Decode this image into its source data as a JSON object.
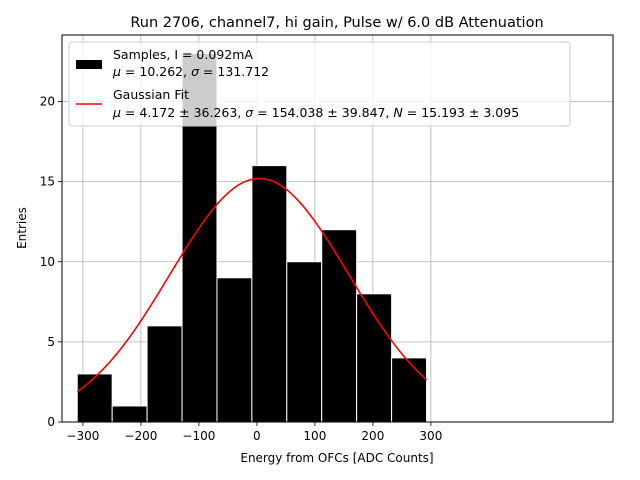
{
  "chart_data": {
    "type": "bar",
    "title": "Run 2706, channel7, hi gain, Pulse w/ 6.0 dB Attenuation",
    "xlabel": "Energy from OFCs [ADC Counts]",
    "ylabel": "Entries",
    "xlim": [
      -336,
      614
    ],
    "ylim": [
      0,
      24.15
    ],
    "grid": true,
    "legend_position": "top-left",
    "x_ticks": [
      "−300",
      "−200",
      "−100",
      "0",
      "100",
      "200",
      "300"
    ],
    "x_tick_values": [
      -300,
      -200,
      -100,
      0,
      100,
      200,
      300
    ],
    "y_ticks": [
      "0",
      "5",
      "10",
      "15",
      "20"
    ],
    "y_tick_values": [
      0,
      5,
      10,
      15,
      20
    ],
    "histogram": {
      "bin_edges": [
        -309.7,
        -249.5,
        -189.3,
        -129.0,
        -68.8,
        -8.6,
        51.6,
        111.8,
        172.0,
        232.3,
        292.5
      ],
      "counts": [
        3,
        1,
        6,
        23,
        9,
        16,
        10,
        12,
        8,
        4
      ],
      "color": "#000000",
      "edge_color": "#ffffff"
    },
    "fit": {
      "mu": 4.172,
      "sigma": 154.038,
      "N": 15.193,
      "x_range": [
        -309.7,
        292.5
      ],
      "color": "#ff0000"
    },
    "legend": {
      "entries": [
        {
          "name": "samples",
          "line1": "Samples, I = 0.092mA",
          "line2_parts": [
            {
              "text": "μ",
              "math": true
            },
            {
              "text": " = 10.262, ",
              "math": false
            },
            {
              "text": "σ",
              "math": true
            },
            {
              "text": " = 131.712",
              "math": false
            }
          ]
        },
        {
          "name": "fit",
          "line1": "Gaussian Fit",
          "line2_parts": [
            {
              "text": "μ",
              "math": true
            },
            {
              "text": " = 4.172 ± 36.263, ",
              "math": false
            },
            {
              "text": "σ",
              "math": true
            },
            {
              "text": " = 154.038 ± 39.847, ",
              "math": false
            },
            {
              "text": "N",
              "math": true
            },
            {
              "text": " = 15.193 ± 3.095",
              "math": false
            }
          ]
        }
      ]
    }
  }
}
